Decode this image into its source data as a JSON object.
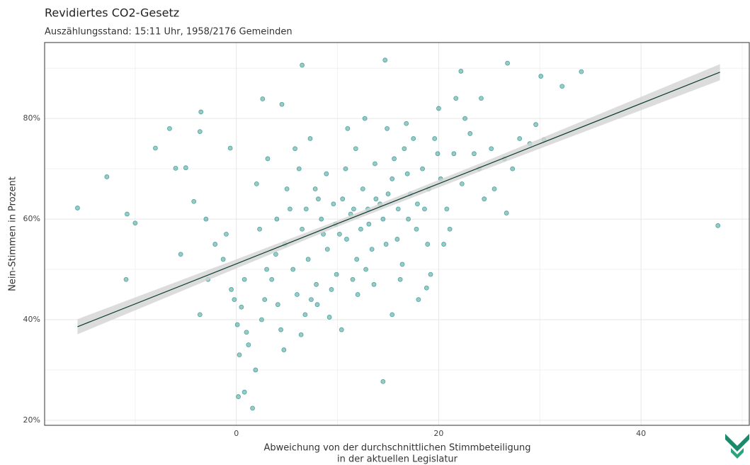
{
  "chart_data": {
    "type": "scatter",
    "title": "Revidiertes CO2-Gesetz",
    "subtitle": "Auszählungsstand: 15:11 Uhr, 1958/2176 Gemeinden",
    "x_label": [
      "Abweichung von der durchschnittlichen Stimmbeteiligung",
      "in der aktuellen Legislatur"
    ],
    "y_label": "Nein-Stimmen in Prozent",
    "xlim": [
      -18.95,
      50.7
    ],
    "ylim": [
      19.0,
      95.1
    ],
    "xticks": [
      0,
      20,
      40
    ],
    "yticks": [
      {
        "value": 20,
        "label": "20%"
      },
      {
        "value": 40,
        "label": "40%"
      },
      {
        "value": 60,
        "label": "60%"
      },
      {
        "value": 80,
        "label": "80%"
      }
    ],
    "minor_xticks": [
      -10,
      10,
      30,
      50
    ],
    "minor_yticks": [
      30,
      50,
      70,
      90
    ],
    "grid": true,
    "color": "#1b8a83",
    "x": [
      -15.7,
      -12.8,
      -10.8,
      -10.0,
      -10.9,
      -8.0,
      -6.6,
      -3.5,
      -3.6,
      -6.0,
      -5.0,
      -0.6,
      6.5,
      14.7,
      22.2,
      26.8,
      34.1,
      32.2,
      30.1,
      47.6,
      14.5,
      1.6,
      0.2,
      0.8,
      2.6,
      4.5,
      15.4,
      18.8,
      26.7,
      30.4,
      29.6,
      0.1,
      0.5,
      1.2,
      -0.5,
      -1.3,
      -2.1,
      -3.0,
      -4.2,
      2.0,
      2.8,
      3.5,
      4.1,
      4.8,
      5.3,
      6.0,
      6.5,
      7.1,
      7.8,
      8.4,
      9.0,
      9.6,
      10.2,
      10.8,
      11.3,
      11.9,
      12.5,
      13.1,
      13.7,
      14.2,
      14.8,
      15.4,
      16.0,
      16.6,
      17.2,
      17.8,
      18.4,
      19.0,
      19.6,
      20.2,
      20.8,
      21.5,
      22.3,
      23.1,
      24.0,
      25.2,
      26.5,
      28.0,
      3.1,
      4.4,
      5.6,
      6.8,
      7.9,
      8.9,
      9.9,
      10.9,
      11.8,
      12.8,
      13.8,
      14.9,
      15.9,
      16.9,
      17.9,
      18.9,
      19.9,
      21.1,
      22.6,
      24.5,
      2.3,
      3.9,
      5.0,
      6.2,
      7.4,
      8.6,
      9.4,
      10.5,
      11.5,
      12.3,
      13.4,
      14.5,
      15.6,
      16.4,
      17.5,
      18.6,
      20.5,
      -1.0,
      0.8,
      1.9,
      0.3,
      1.0,
      -0.2,
      2.5,
      4.7,
      6.4,
      8.0,
      9.2,
      10.4,
      12.0,
      13.6,
      16.2,
      18.0,
      19.2,
      23.5,
      25.5,
      27.3,
      29.0,
      5.8,
      7.3,
      11.0,
      12.7,
      16.8,
      20.0,
      21.7,
      24.2,
      6.9,
      8.1,
      9.8,
      11.6,
      13.0,
      15.0,
      17.0,
      4.0,
      3.0,
      -2.8,
      -5.5,
      -3.6
    ],
    "values": [
      62.2,
      68.4,
      61,
      59.2,
      48,
      74.1,
      78,
      81.3,
      77.4,
      70.1,
      70.2,
      74.1,
      90.6,
      91.6,
      89.4,
      91,
      89.3,
      86.4,
      88.4,
      58.7,
      27.7,
      22.4,
      24.7,
      25.6,
      83.9,
      82.8,
      41,
      46.3,
      61.2,
      75.8,
      78.8,
      39,
      42.5,
      35,
      46,
      52,
      55,
      60,
      63.5,
      67,
      44,
      48,
      43,
      55,
      62,
      45,
      58,
      52,
      66,
      60,
      54,
      63,
      57,
      70,
      61,
      52,
      66,
      59,
      71,
      63,
      55,
      68,
      62,
      74,
      65,
      58,
      70,
      66,
      76,
      68,
      62,
      73,
      67,
      77,
      70,
      74,
      72,
      76,
      72,
      38,
      50,
      41,
      47,
      69,
      49,
      56,
      74,
      50,
      64,
      78,
      56,
      69,
      63,
      55,
      73,
      58,
      80,
      64,
      58,
      53,
      66,
      70,
      44,
      57,
      46,
      64,
      48,
      58,
      54,
      60,
      72,
      51,
      76,
      62,
      55,
      57,
      48,
      30,
      33,
      37.5,
      44,
      40,
      34,
      37,
      43,
      40.5,
      38,
      45,
      47,
      48,
      44,
      49,
      73,
      66,
      70,
      75,
      74,
      76,
      78,
      80,
      79,
      82,
      84,
      84,
      62,
      64,
      59,
      62,
      62,
      65,
      60,
      60,
      50,
      48,
      53,
      41
    ],
    "fit": {
      "color": "#0b3d2e",
      "band_color": "#d3d3d3",
      "x": [
        -15.7,
        0,
        10,
        25,
        47.8
      ],
      "values": [
        38.6,
        51.1,
        59.1,
        71.0,
        89.2
      ],
      "lower": [
        37.1,
        50.2,
        58.5,
        70.2,
        87.6
      ],
      "upper": [
        40.1,
        52.0,
        59.7,
        71.8,
        90.8
      ]
    }
  }
}
